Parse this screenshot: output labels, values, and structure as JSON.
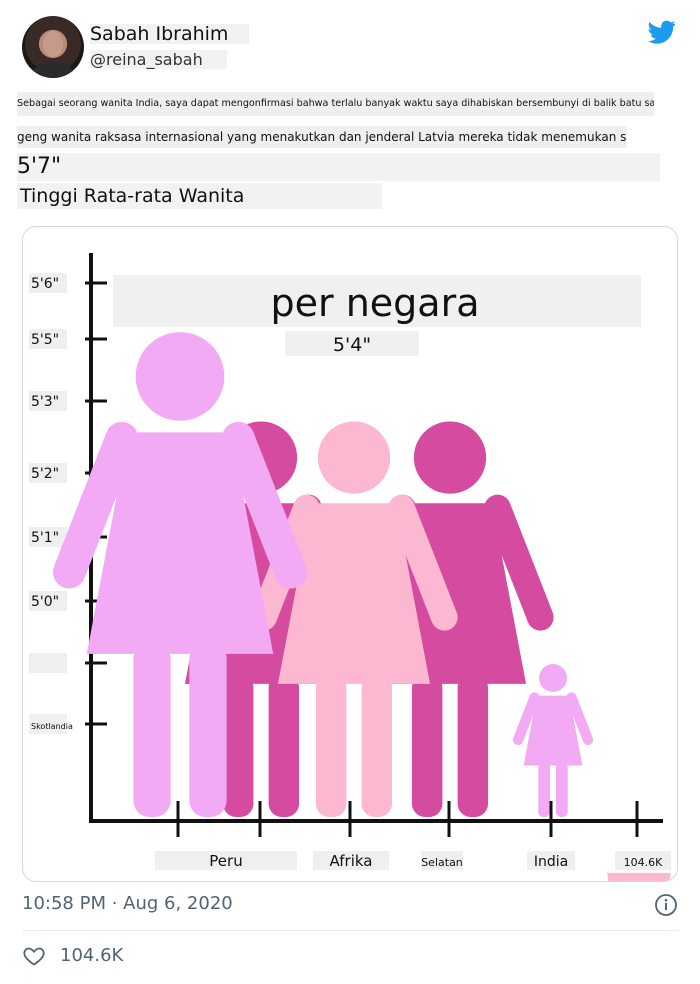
{
  "author": {
    "display_name": "Sabah Ibrahim",
    "handle": "@reina_sabah",
    "avatar_icon": "profile-photo",
    "brand_icon": "twitter-bird-icon",
    "brand_color": "#1d9bf0"
  },
  "tweet": {
    "line1": "Sebagai seorang wanita India, saya dapat mengonfirmasi bahwa terlalu banyak waktu saya dihabiskan bersembunyi di balik batu sambil berdoa agar",
    "line2": "geng wanita raksasa internasional yang menakutkan dan jenderal Latvia mereka tidak menemukan saya",
    "big_height": "5'7\"",
    "chart_title": "Tinggi Rata-rata Wanita"
  },
  "chart_data": {
    "type": "bar",
    "title": "per negara",
    "highlight_value": "5'4\"",
    "y_ticks": [
      "5'6\"",
      "5'5\"",
      "5'3\"",
      "5'2\"",
      "5'1\"",
      "5'0\"",
      "",
      "Skotlandia"
    ],
    "categories": [
      "",
      "Peru",
      "Afrika",
      "Selatan",
      "India",
      "104.6K"
    ],
    "figure_colors": [
      "#f2aaf4",
      "#d44ba0",
      "#fbb8d0",
      "#d44ba0",
      "#f2aaf4",
      "#fbb8d0"
    ],
    "figure_heights": [
      5.55,
      5.2,
      5.2,
      5.2,
      4.25,
      3.0
    ],
    "ylim": [
      4.0,
      5.8
    ]
  },
  "footer": {
    "timestamp": "10:58 PM · Aug 6, 2020",
    "likes": "104.6K",
    "like_icon": "heart-icon",
    "info_icon": "info-icon"
  }
}
